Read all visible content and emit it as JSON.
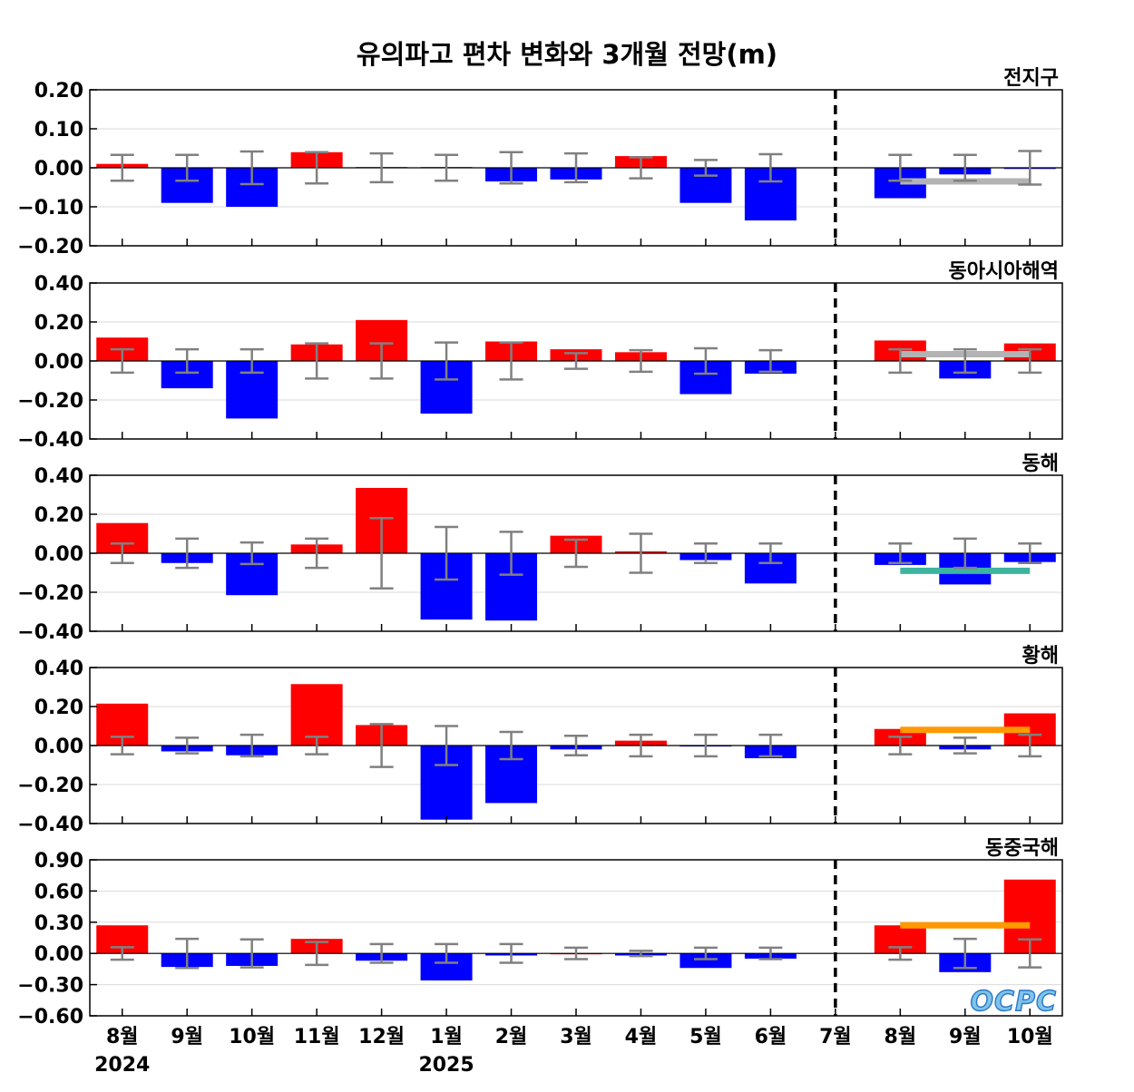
{
  "title": "유의파고 편차 변화와 3개월 전망(m)",
  "logo_text": "OCPC",
  "months": [
    "8월",
    "9월",
    "10월",
    "11월",
    "12월",
    "1월",
    "2월",
    "3월",
    "4월",
    "5월",
    "6월",
    "7월",
    "8월",
    "9월",
    "10월"
  ],
  "year_labels": [
    {
      "index": 0,
      "label": "2024"
    },
    {
      "index": 5,
      "label": "2025"
    }
  ],
  "forecast_divider_after_index": 11,
  "colors": {
    "positive": "#ff0000",
    "negative": "#0000ff",
    "error_bar": "#808080",
    "grid": "#d9d9d9"
  },
  "chart_data": [
    {
      "type": "bar",
      "region": "전지구",
      "ylim": [
        -0.2,
        0.2
      ],
      "ticks": [
        "0.20",
        "0.10",
        "0.00",
        "−0.10",
        "−0.20"
      ],
      "tick_values": [
        0.2,
        0.1,
        0.0,
        -0.1,
        -0.2
      ],
      "values": [
        0.01,
        -0.09,
        -0.1,
        0.04,
        0.002,
        0.002,
        -0.035,
        -0.03,
        0.03,
        -0.09,
        -0.135,
        0.0,
        -0.078,
        -0.017,
        -0.003
      ],
      "error": [
        0.033,
        0.033,
        0.042,
        0.04,
        0.037,
        0.033,
        0.04,
        0.037,
        0.027,
        0.02,
        0.035,
        null,
        0.033,
        0.033,
        0.043
      ],
      "forecast_line": {
        "value": -0.035,
        "from_index": 12,
        "to_index": 14,
        "color": "#b3b3b3"
      }
    },
    {
      "type": "bar",
      "region": "동아시아해역",
      "ylim": [
        -0.4,
        0.4
      ],
      "ticks": [
        "0.40",
        "0.20",
        "0.00",
        "−0.20",
        "−0.40"
      ],
      "tick_values": [
        0.4,
        0.2,
        0.0,
        -0.2,
        -0.4
      ],
      "values": [
        0.12,
        -0.14,
        -0.295,
        0.085,
        0.21,
        -0.27,
        0.1,
        0.06,
        0.045,
        -0.17,
        -0.065,
        0.0,
        0.105,
        -0.09,
        0.09
      ],
      "error": [
        0.06,
        0.06,
        0.06,
        0.09,
        0.09,
        0.095,
        0.095,
        0.04,
        0.055,
        0.065,
        0.055,
        null,
        0.06,
        0.06,
        0.06
      ],
      "forecast_line": {
        "value": 0.035,
        "from_index": 12,
        "to_index": 14,
        "color": "#b3b3b3"
      }
    },
    {
      "type": "bar",
      "region": "동해",
      "ylim": [
        -0.4,
        0.4
      ],
      "ticks": [
        "0.40",
        "0.20",
        "0.00",
        "−0.20",
        "−0.40"
      ],
      "tick_values": [
        0.4,
        0.2,
        0.0,
        -0.2,
        -0.4
      ],
      "values": [
        0.155,
        -0.05,
        -0.215,
        0.045,
        0.335,
        -0.34,
        -0.345,
        0.09,
        0.01,
        -0.035,
        -0.155,
        0.0,
        -0.06,
        -0.16,
        -0.045
      ],
      "error": [
        0.05,
        0.075,
        0.055,
        0.075,
        0.18,
        0.135,
        0.11,
        0.07,
        0.1,
        0.05,
        0.05,
        null,
        0.05,
        0.075,
        0.05
      ],
      "forecast_line": {
        "value": -0.09,
        "from_index": 12,
        "to_index": 14,
        "color": "#3cb4a0"
      }
    },
    {
      "type": "bar",
      "region": "황해",
      "ylim": [
        -0.4,
        0.4
      ],
      "ticks": [
        "0.40",
        "0.20",
        "0.00",
        "−0.20",
        "−0.40"
      ],
      "tick_values": [
        0.4,
        0.2,
        0.0,
        -0.2,
        -0.4
      ],
      "values": [
        0.215,
        -0.03,
        -0.05,
        0.315,
        0.105,
        -0.38,
        -0.295,
        -0.02,
        0.025,
        -0.005,
        -0.065,
        0.0,
        0.085,
        -0.02,
        0.165
      ],
      "error": [
        0.045,
        0.04,
        0.055,
        0.045,
        0.11,
        0.1,
        0.07,
        0.05,
        0.055,
        0.055,
        0.055,
        null,
        0.045,
        0.04,
        0.055
      ],
      "forecast_line": {
        "value": 0.08,
        "from_index": 12,
        "to_index": 14,
        "color": "#ff9900"
      }
    },
    {
      "type": "bar",
      "region": "동중국해",
      "ylim": [
        -0.6,
        0.9
      ],
      "ticks": [
        "0.90",
        "0.60",
        "0.30",
        "0.00",
        "−0.30",
        "−0.60"
      ],
      "tick_values": [
        0.9,
        0.6,
        0.3,
        0.0,
        -0.3,
        -0.6
      ],
      "values": [
        0.27,
        -0.13,
        -0.12,
        0.14,
        -0.07,
        -0.26,
        -0.02,
        0.0,
        -0.02,
        -0.14,
        -0.05,
        0.0,
        0.27,
        -0.18,
        0.71
      ],
      "error": [
        0.06,
        0.14,
        0.135,
        0.11,
        0.09,
        0.09,
        0.09,
        0.055,
        0.025,
        0.055,
        0.055,
        null,
        0.06,
        0.14,
        0.135
      ],
      "forecast_line": {
        "value": 0.27,
        "from_index": 12,
        "to_index": 14,
        "color": "#ff9900"
      }
    }
  ]
}
